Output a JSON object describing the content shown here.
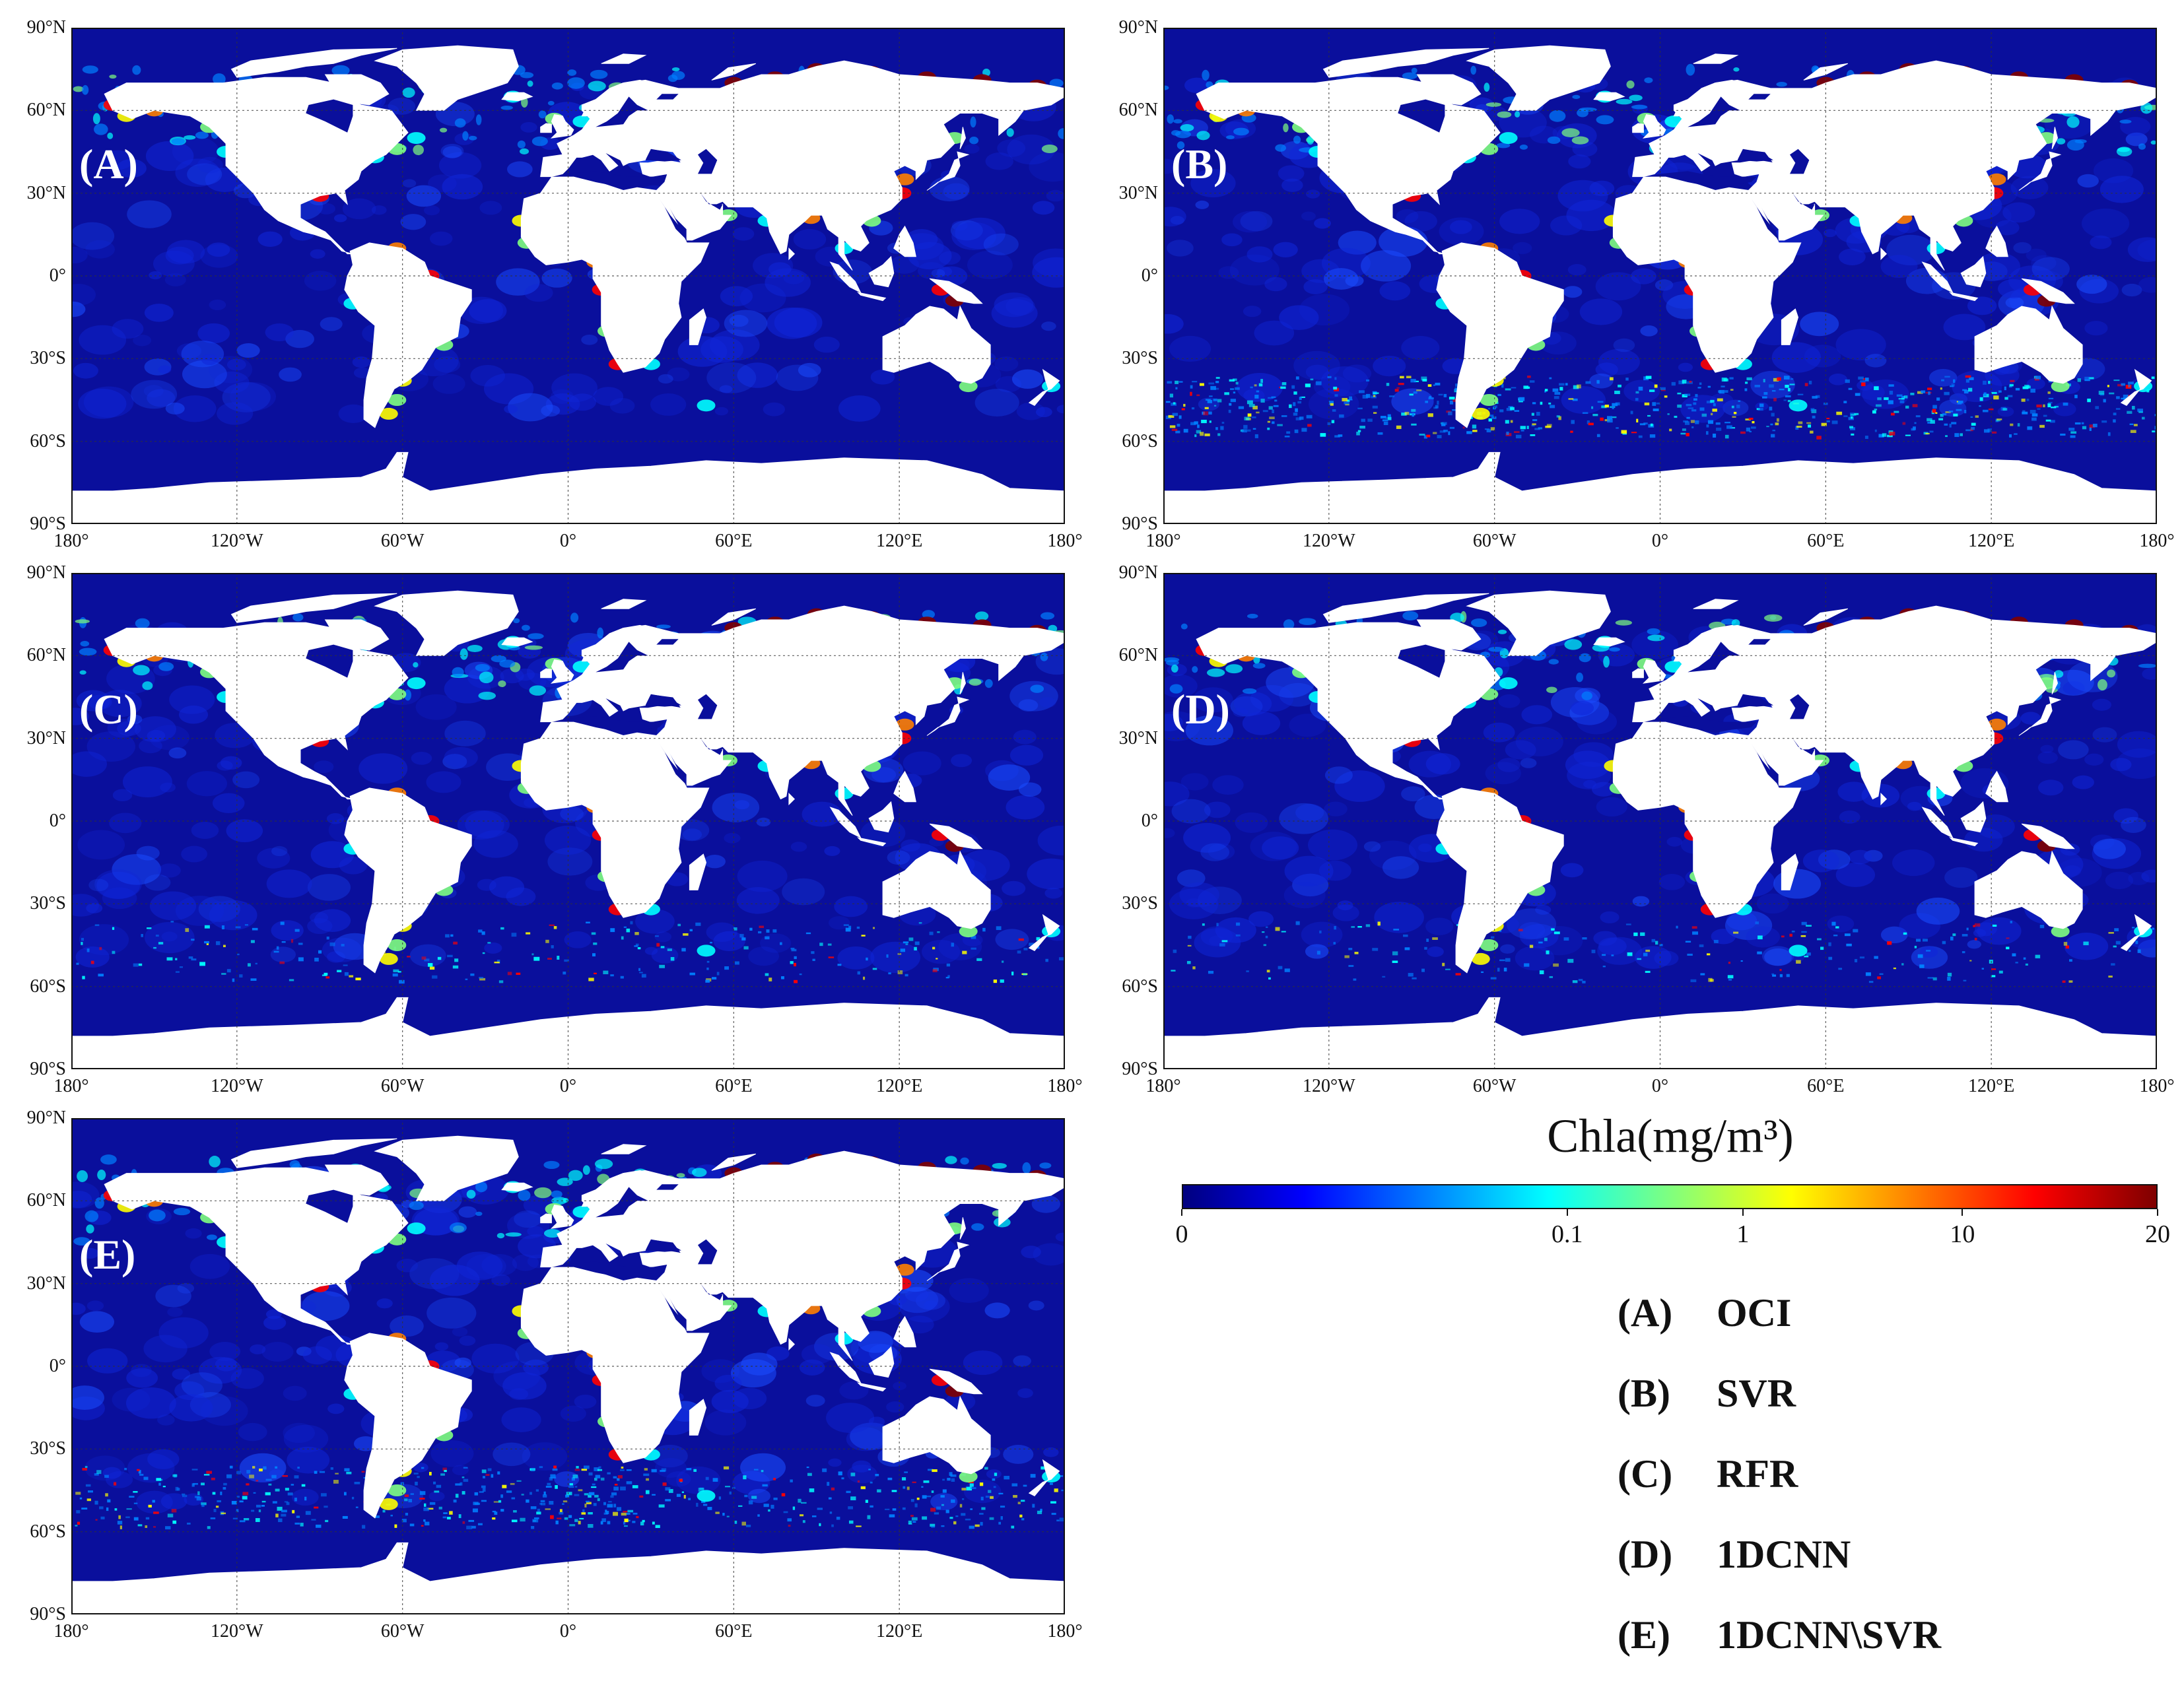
{
  "figure": {
    "panels": [
      {
        "id": "A",
        "letter": "(A)",
        "method": "OCI"
      },
      {
        "id": "B",
        "letter": "(B)",
        "method": "SVR"
      },
      {
        "id": "C",
        "letter": "(C)",
        "method": "RFR"
      },
      {
        "id": "D",
        "letter": "(D)",
        "method": "1DCNN"
      },
      {
        "id": "E",
        "letter": "(E)",
        "method": "1DCNN\\SVR"
      }
    ],
    "lat_labels": [
      "90°N",
      "60°N",
      "30°N",
      "0°",
      "30°S",
      "60°S",
      "90°S"
    ],
    "lon_labels": [
      "180°",
      "120°W",
      "60°W",
      "0°",
      "60°E",
      "120°E",
      "180°"
    ]
  },
  "colorbar": {
    "title": "Chla(mg/m³)",
    "ticks": [
      "0",
      "0.1",
      "1",
      "10",
      "20"
    ],
    "colors": [
      "#00007f",
      "#0000ff",
      "#007fff",
      "#00ffff",
      "#7fff7f",
      "#ffff00",
      "#ff7f00",
      "#ff0000",
      "#7f0000"
    ]
  },
  "legend": [
    {
      "code": "(A)",
      "name": "OCI"
    },
    {
      "code": "(B)",
      "name": "SVR"
    },
    {
      "code": "(C)",
      "name": "RFR"
    },
    {
      "code": "(D)",
      "name": "1DCNN"
    },
    {
      "code": "(E)",
      "name": "1DCNN\\SVR"
    }
  ],
  "colors": {
    "ocean": "#0a0f9c",
    "land": "#ffffff",
    "grid": "#333333"
  }
}
